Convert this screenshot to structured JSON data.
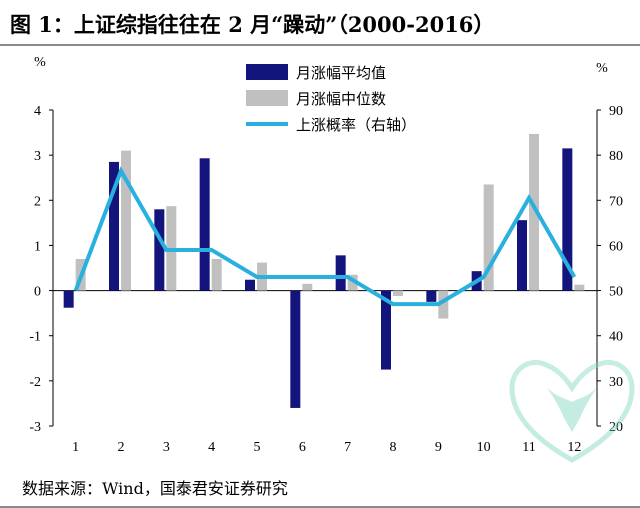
{
  "title": "图 1：上证综指往往在 2 月“躁动”（2000-2016）",
  "source": "数据来源：Wind，国泰君安证券研究",
  "chart_data": {
    "type": "bar",
    "categories": [
      "1",
      "2",
      "3",
      "4",
      "5",
      "6",
      "7",
      "8",
      "9",
      "10",
      "11",
      "12"
    ],
    "series": [
      {
        "name": "月涨幅平均值",
        "type": "bar",
        "axis": "left",
        "color": "#14147d",
        "values": [
          -0.38,
          2.85,
          1.8,
          2.93,
          0.24,
          -2.6,
          0.78,
          -1.75,
          -0.25,
          0.43,
          1.56,
          3.15
        ]
      },
      {
        "name": "月涨幅中位数",
        "type": "bar",
        "axis": "left",
        "color": "#c0c0c0",
        "values": [
          0.7,
          3.1,
          1.87,
          0.7,
          0.62,
          0.15,
          0.35,
          -0.12,
          -0.62,
          2.35,
          3.47,
          0.13
        ]
      },
      {
        "name": "上涨概率（右轴）",
        "type": "line",
        "axis": "right",
        "color": "#29b0df",
        "values": [
          50,
          76.5,
          59,
          59,
          53,
          53,
          53,
          47,
          47,
          53,
          70.5,
          53
        ]
      }
    ],
    "y_left": {
      "label": "%",
      "min": -3,
      "max": 4,
      "ticks": [
        "-3",
        "-2",
        "-1",
        "0",
        "1",
        "2",
        "3",
        "4"
      ]
    },
    "y_right": {
      "label": "%",
      "min": 20,
      "max": 90,
      "ticks": [
        "20",
        "30",
        "40",
        "50",
        "60",
        "70",
        "80",
        "90"
      ]
    },
    "legend_position": "top-center",
    "grid": false
  }
}
